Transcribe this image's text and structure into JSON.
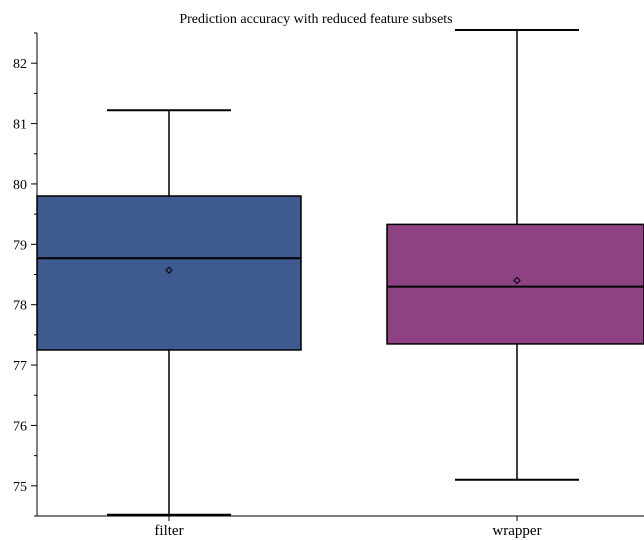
{
  "chart_data": {
    "type": "box",
    "title": "Prediction accuracy with reduced feature subsets",
    "xlabel": "",
    "ylabel": "",
    "ylim": [
      74.5,
      82.5
    ],
    "yticks": [
      75,
      76,
      77,
      78,
      79,
      80,
      81,
      82
    ],
    "grid": false,
    "categories": [
      "filter",
      "wrapper"
    ],
    "boxes": [
      {
        "category": "filter",
        "whisker_low": 74.52,
        "q1": 77.25,
        "median": 78.77,
        "q3": 79.8,
        "whisker_high": 81.22,
        "mean": 78.57,
        "color": "#3f5a8f"
      },
      {
        "category": "wrapper",
        "whisker_low": 75.1,
        "q1": 77.35,
        "median": 78.3,
        "q3": 79.33,
        "whisker_high": 82.55,
        "mean": 78.4,
        "color": "#8e4284"
      }
    ]
  }
}
